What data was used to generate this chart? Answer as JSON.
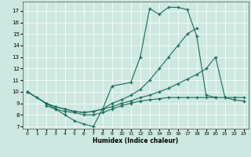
{
  "background_color": "#cde8e0",
  "grid_color": "#ffffff",
  "line_color": "#1a6b5a",
  "xlabel": "Humidex (Indice chaleur)",
  "xlim": [
    -0.5,
    23.5
  ],
  "ylim": [
    6.8,
    17.8
  ],
  "yticks": [
    7,
    8,
    9,
    10,
    11,
    12,
    13,
    14,
    15,
    16,
    17
  ],
  "xticks": [
    0,
    1,
    2,
    3,
    4,
    5,
    6,
    7,
    8,
    9,
    10,
    11,
    12,
    13,
    14,
    15,
    16,
    17,
    18,
    19,
    20,
    21,
    22,
    23
  ],
  "line1_x": [
    0,
    1,
    2,
    3,
    4,
    5,
    6,
    7,
    8,
    9,
    11,
    12,
    13,
    14,
    15,
    16,
    17,
    18,
    19,
    20
  ],
  "line1_y": [
    10.0,
    9.5,
    9.0,
    8.5,
    8.0,
    7.5,
    7.2,
    7.0,
    8.5,
    10.5,
    10.8,
    13.0,
    17.2,
    16.7,
    17.3,
    17.3,
    17.1,
    14.8,
    9.7,
    9.5
  ],
  "line2_x": [
    0,
    2,
    3,
    4,
    5,
    6,
    7,
    8,
    9,
    10,
    11,
    12,
    13,
    14,
    15,
    16,
    17,
    18,
    19,
    20,
    21,
    22,
    23
  ],
  "line2_y": [
    10.0,
    9.0,
    8.7,
    8.5,
    8.3,
    8.2,
    8.3,
    8.5,
    8.7,
    9.0,
    9.2,
    9.5,
    9.7,
    10.0,
    10.3,
    10.7,
    11.1,
    11.5,
    12.0,
    13.0,
    9.5,
    9.3,
    9.2
  ],
  "line3_x": [
    0,
    2,
    3,
    4,
    5,
    6,
    7,
    8,
    9,
    10,
    11,
    12,
    13,
    14,
    15,
    16,
    17,
    18
  ],
  "line3_y": [
    10.0,
    9.0,
    8.7,
    8.5,
    8.3,
    8.2,
    8.3,
    8.5,
    9.0,
    9.3,
    9.7,
    10.2,
    11.0,
    12.0,
    13.0,
    14.0,
    15.0,
    15.5
  ],
  "line4_x": [
    2,
    3,
    4,
    5,
    6,
    7,
    8,
    9,
    10,
    11,
    12,
    13,
    14,
    15,
    16,
    17,
    18,
    19,
    20,
    21,
    22,
    23
  ],
  "line4_y": [
    8.8,
    8.5,
    8.3,
    8.2,
    8.0,
    8.0,
    8.2,
    8.5,
    8.8,
    9.0,
    9.2,
    9.3,
    9.4,
    9.5,
    9.5,
    9.5,
    9.5,
    9.5,
    9.5,
    9.5,
    9.5,
    9.5
  ]
}
